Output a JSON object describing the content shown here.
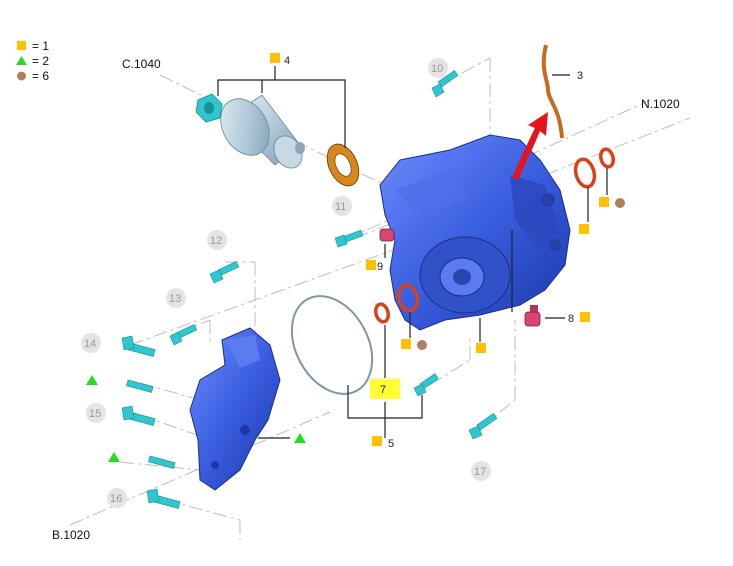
{
  "legend": {
    "items": [
      {
        "symbol": "square",
        "color": "#ffc000",
        "text": "= 1"
      },
      {
        "symbol": "triangle",
        "color": "#22dd22",
        "text": "= 2"
      },
      {
        "symbol": "circle",
        "color": "#b07f62",
        "text": "= 6"
      }
    ]
  },
  "references": {
    "c1040": "C.1040",
    "n1020": "N.1020",
    "b1020": "B.1020"
  },
  "callouts": {
    "p3": "3",
    "p4": "4",
    "p5": "5",
    "p7": "7",
    "p8": "8",
    "p9": "9",
    "p10": "10",
    "p11": "11",
    "p12": "12",
    "p13": "13",
    "p14": "14",
    "p15": "15",
    "p16": "16",
    "p17": "17"
  },
  "colors": {
    "housing": "#3a5ee0",
    "bolt": "#2fc6cf",
    "oring": "#d9411a",
    "arrow": "#e3141b",
    "square_marker": "#ffc000",
    "triangle_marker": "#22dd22",
    "circle_marker": "#b07f62",
    "highlight": "#ffff33"
  }
}
